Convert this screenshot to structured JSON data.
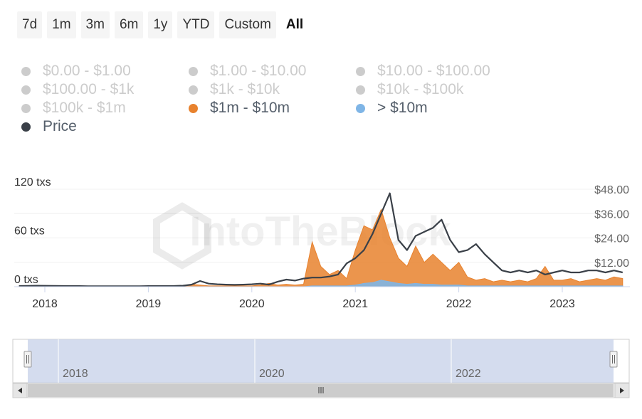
{
  "range_selector": {
    "buttons": [
      "7d",
      "1m",
      "3m",
      "6m",
      "1y",
      "YTD",
      "Custom",
      "All"
    ],
    "active": "All"
  },
  "legend": {
    "items": [
      {
        "label": "$0.00 - $1.00",
        "color": "#cccccc",
        "enabled": false
      },
      {
        "label": "$1.00 - $10.00",
        "color": "#cccccc",
        "enabled": false
      },
      {
        "label": "$10.00 - $100.00",
        "color": "#cccccc",
        "enabled": false
      },
      {
        "label": "$100.00 - $1k",
        "color": "#cccccc",
        "enabled": false
      },
      {
        "label": "$1k - $10k",
        "color": "#cccccc",
        "enabled": false
      },
      {
        "label": "$10k - $100k",
        "color": "#cccccc",
        "enabled": false
      },
      {
        "label": "$100k - $1m",
        "color": "#cccccc",
        "enabled": false
      },
      {
        "label": "$1m - $10m",
        "color": "#e8822e",
        "enabled": true
      },
      {
        "label": "> $10m",
        "color": "#7fb5e6",
        "enabled": true
      },
      {
        "label": "Price",
        "color": "#3a4048",
        "enabled": true
      }
    ]
  },
  "watermark": "IntoTheBlock",
  "colors": {
    "orange": "#e8822e",
    "blue": "#7fb5e6",
    "price": "#3a4048",
    "navigator_fill": "#ccd6eb"
  },
  "chart_data": {
    "type": "area",
    "x": [
      "2017-10",
      "2017-11",
      "2017-12",
      "2018-01",
      "2018-02",
      "2018-03",
      "2018-04",
      "2018-05",
      "2018-06",
      "2018-07",
      "2018-08",
      "2018-09",
      "2018-10",
      "2018-11",
      "2018-12",
      "2019-01",
      "2019-02",
      "2019-03",
      "2019-04",
      "2019-05",
      "2019-06",
      "2019-07",
      "2019-08",
      "2019-09",
      "2019-10",
      "2019-11",
      "2019-12",
      "2020-01",
      "2020-02",
      "2020-03",
      "2020-04",
      "2020-05",
      "2020-06",
      "2020-07",
      "2020-08",
      "2020-09",
      "2020-10",
      "2020-11",
      "2020-12",
      "2021-01",
      "2021-02",
      "2021-03",
      "2021-04",
      "2021-05",
      "2021-06",
      "2021-07",
      "2021-08",
      "2021-09",
      "2021-10",
      "2021-11",
      "2021-12",
      "2022-01",
      "2022-02",
      "2022-03",
      "2022-04",
      "2022-05",
      "2022-06",
      "2022-07",
      "2022-08",
      "2022-09",
      "2022-10",
      "2022-11",
      "2022-12",
      "2023-01",
      "2023-02",
      "2023-03",
      "2023-04",
      "2023-05",
      "2023-06",
      "2023-07",
      "2023-08"
    ],
    "series": [
      {
        "name": "$1m - $10m",
        "axis": "txs",
        "values": [
          0,
          0,
          0,
          0,
          0,
          0,
          0,
          0,
          0,
          0,
          0,
          0,
          0,
          0,
          0,
          0,
          0,
          0,
          0,
          0,
          3,
          2,
          1,
          1,
          1,
          1,
          1,
          1,
          2,
          4,
          2,
          3,
          2,
          3,
          55,
          25,
          15,
          20,
          10,
          45,
          75,
          70,
          95,
          60,
          35,
          25,
          50,
          30,
          40,
          30,
          20,
          30,
          12,
          8,
          10,
          6,
          8,
          6,
          8,
          6,
          10,
          25,
          8,
          8,
          10,
          6,
          8,
          10,
          8,
          12,
          10
        ]
      },
      {
        "name": "> $10m",
        "axis": "txs",
        "values": [
          0,
          0,
          0,
          0,
          0,
          0,
          0,
          0,
          0,
          0,
          0,
          0,
          0,
          0,
          0,
          0,
          0,
          0,
          0,
          0,
          0,
          0,
          0,
          0,
          0,
          0,
          0,
          0,
          0,
          0,
          0,
          0,
          0,
          0,
          1,
          1,
          1,
          1,
          1,
          2,
          4,
          5,
          8,
          6,
          4,
          3,
          4,
          3,
          3,
          2,
          2,
          2,
          1,
          1,
          1,
          1,
          1,
          1,
          1,
          1,
          1,
          1,
          1,
          1,
          1,
          1,
          1,
          1,
          1,
          1,
          1
        ]
      },
      {
        "name": "Price",
        "axis": "usd",
        "values": [
          0.35,
          0.4,
          0.5,
          0.45,
          0.4,
          0.35,
          0.3,
          0.3,
          0.25,
          0.25,
          0.25,
          0.25,
          0.25,
          0.25,
          0.25,
          0.3,
          0.3,
          0.3,
          0.35,
          0.5,
          1.0,
          2.8,
          1.5,
          1.2,
          1.0,
          0.9,
          1.0,
          1.2,
          1.5,
          1.0,
          2.5,
          3.5,
          3.0,
          4.0,
          4.5,
          4.5,
          5.0,
          6.0,
          11.5,
          14.0,
          18.0,
          26.0,
          36.0,
          46.0,
          23.0,
          18.0,
          25.0,
          27.0,
          29.0,
          33.0,
          23.0,
          17.0,
          18.0,
          21.0,
          16.0,
          12.0,
          8.0,
          7.0,
          8.0,
          7.0,
          8.0,
          6.0,
          7.0,
          8.0,
          7.0,
          7.0,
          8.0,
          8.0,
          7.0,
          8.0,
          7.0
        ]
      }
    ],
    "y_left": {
      "label_unit": "txs",
      "ticks": [
        "0 txs",
        "60 txs",
        "120 txs"
      ],
      "tick_values": [
        0,
        60,
        120
      ],
      "range": [
        0,
        120
      ]
    },
    "y_right": {
      "ticks": [
        "$48.00",
        "$36.00",
        "$24.00",
        "$12.00"
      ],
      "tick_values": [
        48,
        36,
        24,
        12
      ],
      "range": [
        0,
        48
      ]
    },
    "x_ticks": [
      "2018",
      "2019",
      "2020",
      "2021",
      "2022",
      "2023"
    ],
    "x_tick_values": [
      "2018-01",
      "2019-01",
      "2020-01",
      "2021-01",
      "2022-01",
      "2023-01"
    ],
    "navigator_ticks": [
      "2018",
      "2020",
      "2022"
    ],
    "navigator_tick_values": [
      "2018-01",
      "2020-01",
      "2022-01"
    ],
    "grid": true
  }
}
